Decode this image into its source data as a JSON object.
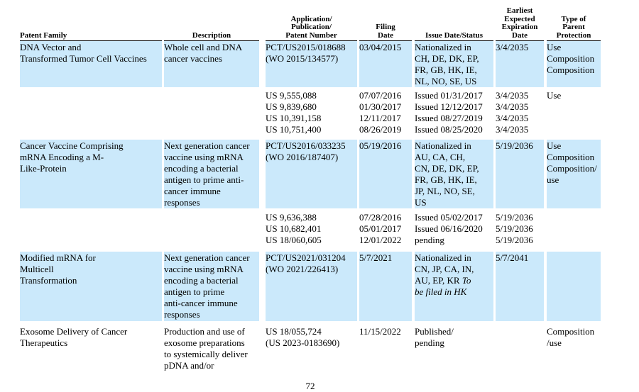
{
  "colors": {
    "highlight": "#cbe9fb",
    "text": "#000000",
    "background": "#ffffff"
  },
  "footer": {
    "page_number": "72"
  },
  "table": {
    "columns": [
      {
        "id": "patent_family",
        "label_lines": [
          "Patent Family"
        ]
      },
      {
        "id": "description",
        "label_lines": [
          "Description"
        ]
      },
      {
        "id": "application_number",
        "label_lines": [
          "Application/",
          "Publication/",
          "Patent Number"
        ]
      },
      {
        "id": "filing_date",
        "label_lines": [
          "Filing",
          "Date"
        ]
      },
      {
        "id": "issue_date_status",
        "label_lines": [
          "Issue Date/Status"
        ]
      },
      {
        "id": "earliest_expected_expiration_date",
        "label_lines": [
          "Earliest",
          "Expected",
          "Expiration",
          "Date"
        ]
      },
      {
        "id": "type_of_parent_protection",
        "label_lines": [
          "Type of",
          "Parent",
          "Protection"
        ]
      }
    ],
    "rows": [
      {
        "highlight": true,
        "family": [
          "DNA Vector and",
          "Transformed Tumor Cell Vaccines"
        ],
        "description": [
          "Whole cell and DNA",
          "cancer vaccines"
        ],
        "application": [
          "PCT/US2015/018688",
          "(WO 2015/134577)"
        ],
        "filing": [
          "03/04/2015"
        ],
        "issue": [
          "Nationalized in",
          "CH, DE, DK, EP,",
          "FR, GB, HK, IE,",
          "NL, NO, SE, US"
        ],
        "expiration": [
          "3/4/2035"
        ],
        "type": [
          "Use",
          "Composition",
          "Composition"
        ]
      },
      {
        "highlight": false,
        "family": [],
        "description": [],
        "application": [
          "US 9,555,088",
          "US 9,839,680",
          "US 10,391,158",
          "US 10,751,400"
        ],
        "filing": [
          "07/07/2016",
          "01/30/2017",
          "12/11/2017",
          "08/26/2019"
        ],
        "issue": [
          "Issued 01/31/2017",
          "Issued 12/12/2017",
          "Issued 08/27/2019",
          "Issued 08/25/2020"
        ],
        "expiration": [
          "3/4/2035",
          "3/4/2035",
          "3/4/2035",
          "3/4/2035"
        ],
        "type": [
          "Use"
        ]
      },
      {
        "highlight": true,
        "family": [
          "Cancer Vaccine Comprising",
          "mRNA Encoding a M-",
          "Like-Protein"
        ],
        "description": [
          "Next generation cancer",
          "vaccine using mRNA",
          "encoding a bacterial",
          "antigen to prime anti-",
          "cancer immune",
          "responses"
        ],
        "application": [
          "PCT/US2016/033235",
          "(WO 2016/187407)"
        ],
        "filing": [
          "05/19/2016"
        ],
        "issue": [
          "Nationalized in",
          "AU, CA, CH,",
          "CN, DE, DK, EP,",
          "FR, GB, HK, IE,",
          "JP, NL, NO, SE,",
          "US"
        ],
        "expiration": [
          "5/19/2036"
        ],
        "type": [
          "Use",
          "Composition",
          "Composition/",
          "use"
        ]
      },
      {
        "highlight": false,
        "family": [],
        "description": [],
        "application": [
          "US 9,636,388",
          "US 10,682,401",
          "US 18/060,605"
        ],
        "filing": [
          "07/28/2016",
          "05/01/2017",
          "12/01/2022"
        ],
        "issue": [
          "Issued 05/02/2017",
          "Issued 06/16/2020",
          "pending"
        ],
        "expiration": [
          "5/19/2036",
          "5/19/2036",
          "5/19/2036"
        ],
        "type": []
      },
      {
        "highlight": true,
        "family": [
          "Modified mRNA for",
          "Multicell",
          "Transformation"
        ],
        "description": [
          "Next generation cancer",
          "vaccine using mRNA",
          "encoding a bacterial",
          "antigen to prime",
          "anti-cancer immune",
          "responses"
        ],
        "application": [
          "PCT/US2021/031204",
          "(WO 2021/226413)"
        ],
        "filing": [
          "5/7/2021"
        ],
        "issue": [
          "Nationalized in",
          "CN, JP, CA, IN,",
          [
            "AU, EP, KR ",
            {
              "i": "To"
            }
          ],
          [
            {
              "i": "be filed in HK"
            }
          ]
        ],
        "expiration": [
          "5/7/2041"
        ],
        "type": []
      },
      {
        "highlight": false,
        "family": [
          "Exosome Delivery of Cancer",
          "Therapeutics"
        ],
        "description": [
          "Production and use of",
          "exosome preparations",
          "to systemically deliver",
          "pDNA and/or"
        ],
        "application": [
          "US 18/055,724",
          "(US 2023-0183690)"
        ],
        "filing": [
          "11/15/2022"
        ],
        "issue": [
          "Published/",
          "pending"
        ],
        "expiration": [],
        "type": [
          "Composition",
          "/use"
        ]
      }
    ]
  }
}
